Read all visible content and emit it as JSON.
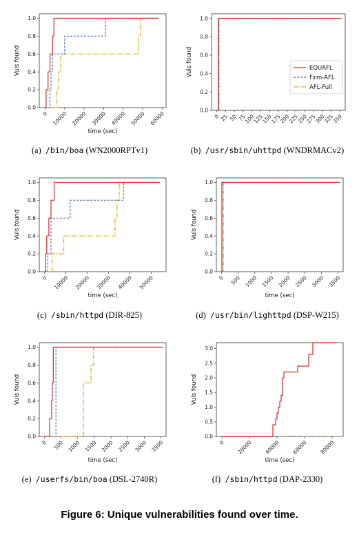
{
  "figure_caption": "Figure 6: Unique vulnerabilities found over time.",
  "colors": {
    "EQUAFL": "#d62728",
    "Firm-AFL": "#4a6fb5",
    "AFL-Full": "#d9a400"
  },
  "subplots": [
    {
      "letter": "(a)",
      "path": "/bin/boa",
      "device": "(WN2000RPTv1)"
    },
    {
      "letter": "(b)",
      "path": "/usr/sbin/uhttpd",
      "device": "(WNDRMACv2)"
    },
    {
      "letter": "(c)",
      "path": "/sbin/httpd",
      "device": "(DIR-825)"
    },
    {
      "letter": "(d)",
      "path": "/usr/bin/lighttpd",
      "device": "(DSP-W215)"
    },
    {
      "letter": "(e)",
      "path": "/userfs/bin/boa",
      "device": "(DSL-2740R)"
    },
    {
      "letter": "(f)",
      "path": "/sbin/httpd",
      "device": "(DAP-2330)"
    }
  ],
  "chart_data": [
    {
      "type": "line",
      "xlabel": "time (sec)",
      "ylabel": "Vuls found",
      "xlim": [
        -3000,
        62000
      ],
      "ylim": [
        0,
        1.05
      ],
      "xticks": [
        0,
        10000,
        20000,
        30000,
        40000,
        50000,
        60000
      ],
      "yticks": [
        0.0,
        0.2,
        0.4,
        0.6,
        0.8,
        1.0
      ],
      "series": [
        {
          "name": "EQUAFL",
          "style": "solid",
          "x": [
            0,
            500,
            1500,
            2500,
            3200,
            3800,
            4500,
            58000
          ],
          "y": [
            0,
            0.2,
            0.4,
            0.6,
            0.6,
            0.8,
            1.0,
            1.0
          ]
        },
        {
          "name": "Firm-AFL",
          "style": "dash",
          "x": [
            0,
            2500,
            3000,
            3800,
            10000,
            30000,
            31000,
            58000
          ],
          "y": [
            0,
            0.2,
            0.4,
            0.6,
            0.8,
            0.8,
            1.0,
            1.0
          ]
        },
        {
          "name": "AFL-Full",
          "style": "dashdot",
          "x": [
            0,
            6000,
            7000,
            8000,
            31000,
            48000,
            49000,
            58000
          ],
          "y": [
            0,
            0.2,
            0.4,
            0.6,
            0.6,
            0.8,
            1.0,
            1.0
          ]
        }
      ]
    },
    {
      "type": "line",
      "xlabel": "",
      "ylabel": "Vuls found",
      "xlim": [
        -15,
        365
      ],
      "ylim": [
        0,
        1.05
      ],
      "xticks": [
        0,
        25,
        50,
        75,
        100,
        125,
        150,
        175,
        200,
        225,
        250,
        275,
        300,
        325,
        350
      ],
      "yticks": [
        0.0,
        0.2,
        0.4,
        0.6,
        0.8,
        1.0
      ],
      "legend": {
        "position": "right",
        "entries": [
          "EQUAFL",
          "Firm-AFL",
          "AFL-Full"
        ]
      },
      "series": [
        {
          "name": "EQUAFL",
          "style": "solid",
          "x": [
            0,
            3,
            4,
            355
          ],
          "y": [
            0,
            0,
            1.0,
            1.0
          ]
        },
        {
          "name": "Firm-AFL",
          "style": "dash",
          "x": [
            0,
            4,
            5,
            355
          ],
          "y": [
            0,
            0,
            1.0,
            1.0
          ]
        },
        {
          "name": "AFL-Full",
          "style": "dashdot",
          "x": [
            0,
            5,
            6,
            355
          ],
          "y": [
            0,
            0,
            1.0,
            1.0
          ]
        }
      ]
    },
    {
      "type": "line",
      "xlabel": "time (sec)",
      "ylabel": "Vuls found",
      "xlim": [
        -2500,
        57000
      ],
      "ylim": [
        0,
        1.05
      ],
      "xticks": [
        0,
        10000,
        20000,
        30000,
        40000,
        50000
      ],
      "yticks": [
        0.0,
        0.2,
        0.4,
        0.6,
        0.8,
        1.0
      ],
      "series": [
        {
          "name": "EQUAFL",
          "style": "solid",
          "x": [
            0,
            500,
            1000,
            2000,
            3000,
            4500,
            54000
          ],
          "y": [
            0,
            0.2,
            0.4,
            0.6,
            0.8,
            1.0,
            1.0
          ]
        },
        {
          "name": "Firm-AFL",
          "style": "dash",
          "x": [
            0,
            1500,
            3000,
            12000,
            36000,
            37000,
            54000
          ],
          "y": [
            0,
            0.2,
            0.6,
            0.8,
            0.8,
            1.0,
            1.0
          ]
        },
        {
          "name": "AFL-Full",
          "style": "dashdot",
          "x": [
            0,
            2000,
            3500,
            9000,
            33000,
            34000,
            35000,
            54000
          ],
          "y": [
            0,
            0,
            0.2,
            0.4,
            0.6,
            0.8,
            1.0,
            1.0
          ]
        }
      ]
    },
    {
      "type": "line",
      "xlabel": "time (sec)",
      "ylabel": "Vuls found",
      "xlim": [
        -150,
        3650
      ],
      "ylim": [
        0,
        1.05
      ],
      "xticks": [
        0,
        500,
        1000,
        1500,
        2000,
        2500,
        3000,
        3500
      ],
      "yticks": [
        0.0,
        0.2,
        0.4,
        0.6,
        0.8,
        1.0
      ],
      "series": [
        {
          "name": "EQUAFL",
          "style": "solid",
          "x": [
            0,
            10,
            15,
            3550
          ],
          "y": [
            0,
            0,
            1.0,
            1.0
          ]
        },
        {
          "name": "Firm-AFL",
          "style": "dash",
          "x": [
            0,
            15,
            20,
            3550
          ],
          "y": [
            0,
            0,
            1.0,
            1.0
          ]
        },
        {
          "name": "AFL-Full",
          "style": "dashdot",
          "x": [
            0,
            20,
            60,
            3550
          ],
          "y": [
            0,
            0,
            1.0,
            1.0
          ]
        }
      ]
    },
    {
      "type": "line",
      "xlabel": "time (sec)",
      "ylabel": "Vuls found",
      "xlim": [
        -150,
        3650
      ],
      "ylim": [
        0,
        1.05
      ],
      "xticks": [
        0,
        500,
        1000,
        1500,
        2000,
        2500,
        3000,
        3500
      ],
      "yticks": [
        0.0,
        0.2,
        0.4,
        0.6,
        0.8,
        1.0
      ],
      "series": [
        {
          "name": "EQUAFL",
          "style": "solid",
          "x": [
            0,
            160,
            220,
            240,
            270,
            3550
          ],
          "y": [
            0,
            0.2,
            0.4,
            0.6,
            1.0,
            1.0
          ]
        },
        {
          "name": "Firm-AFL",
          "style": "dash",
          "x": [
            0,
            340,
            350,
            3550
          ],
          "y": [
            0,
            0,
            1.0,
            1.0
          ]
        },
        {
          "name": "AFL-Full",
          "style": "dashdot",
          "x": [
            0,
            1170,
            1400,
            1480,
            1540,
            3550
          ],
          "y": [
            0,
            0.6,
            0.8,
            1.0,
            1.0,
            1.0
          ]
        }
      ]
    },
    {
      "type": "line",
      "xlabel": "time (sec)",
      "ylabel": "Vuls found",
      "xlim": [
        -4000,
        88000
      ],
      "ylim": [
        0,
        3.2
      ],
      "xticks": [
        0,
        20000,
        40000,
        60000,
        80000
      ],
      "yticks": [
        0.0,
        0.5,
        1.0,
        1.5,
        2.0,
        2.5,
        3.0
      ],
      "series": [
        {
          "name": "EQUAFL",
          "style": "solid",
          "x": [
            0,
            37000,
            39000,
            40000,
            41000,
            42000,
            43000,
            44000,
            45000,
            55000,
            57000,
            63000,
            66000,
            82000
          ],
          "y": [
            0,
            0.4,
            0.6,
            0.8,
            1.0,
            1.2,
            1.4,
            2.0,
            2.2,
            2.4,
            2.4,
            2.8,
            3.2,
            3.2
          ]
        },
        {
          "name": "Firm-AFL",
          "style": "dash",
          "x": [
            0,
            82000
          ],
          "y": [
            0,
            0
          ]
        },
        {
          "name": "AFL-Full",
          "style": "dashdot",
          "x": [
            0,
            82000
          ],
          "y": [
            0,
            0
          ]
        }
      ]
    }
  ]
}
